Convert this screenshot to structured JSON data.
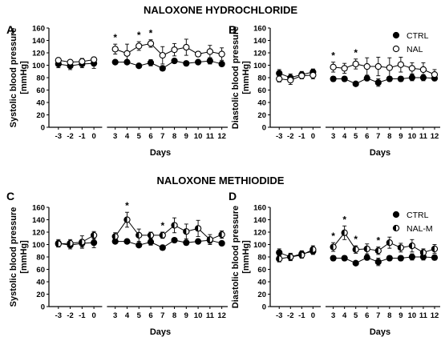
{
  "section_titles": [
    "NALOXONE HYDROCHLORIDE",
    "NALOXONE METHIODIDE"
  ],
  "chart_data": [
    {
      "type": "line",
      "panel": "A",
      "xlabel": "Days",
      "ylabel_line1": "Systolic blood pressure",
      "ylabel_line2": "[mmHg]",
      "x": [
        -3,
        -2,
        -1,
        0,
        3,
        4,
        5,
        6,
        7,
        8,
        9,
        10,
        11,
        12
      ],
      "xticks": [
        "-3",
        "-2",
        "-1",
        "0",
        "3",
        "4",
        "5",
        "6",
        "7",
        "8",
        "9",
        "10",
        "11",
        "12"
      ],
      "ylim": [
        0,
        160
      ],
      "yticks": [
        0,
        20,
        40,
        60,
        80,
        100,
        120,
        140,
        160
      ],
      "series": [
        {
          "name": "",
          "marker": "filled",
          "values": [
            102,
            99,
            102,
            103,
            105,
            105,
            99,
            104,
            95,
            107,
            103,
            105,
            107,
            102
          ],
          "errors": [
            6,
            6,
            6,
            8,
            2,
            2,
            2,
            5,
            4,
            3,
            3,
            3,
            5,
            3
          ]
        },
        {
          "name": "",
          "marker": "open",
          "values": [
            108,
            105,
            106,
            109,
            126,
            119,
            131,
            135,
            116,
            125,
            129,
            118,
            122,
            118
          ],
          "errors": [
            3,
            3,
            5,
            4,
            8,
            15,
            7,
            6,
            14,
            10,
            13,
            4,
            10,
            10
          ]
        }
      ],
      "significance": [
        3,
        5,
        6
      ],
      "legend": null
    },
    {
      "type": "line",
      "panel": "B",
      "xlabel": "Days",
      "ylabel_line1": "Diastolic blood pressure",
      "ylabel_line2": "[mmHg]",
      "x": [
        -3,
        -2,
        -1,
        0,
        3,
        4,
        5,
        6,
        7,
        8,
        9,
        10,
        11,
        12
      ],
      "xticks": [
        "-3",
        "-2",
        "-1",
        "0",
        "3",
        "4",
        "5",
        "6",
        "7",
        "8",
        "9",
        "10",
        "11",
        "12"
      ],
      "ylim": [
        0,
        160
      ],
      "yticks": [
        0,
        20,
        40,
        60,
        80,
        100,
        120,
        140,
        160
      ],
      "series": [
        {
          "name": "CTRL",
          "marker": "filled",
          "values": [
            87,
            80,
            85,
            89,
            78,
            78,
            70,
            79,
            72,
            78,
            78,
            80,
            80,
            79
          ],
          "errors": [
            6,
            6,
            5,
            5,
            4,
            4,
            2,
            4,
            6,
            4,
            4,
            5,
            5,
            4
          ]
        },
        {
          "name": "NAL",
          "marker": "open",
          "values": [
            78,
            76,
            83,
            84,
            97,
            95,
            102,
            98,
            98,
            96,
            101,
            95,
            93,
            85
          ],
          "errors": [
            5,
            7,
            5,
            6,
            8,
            8,
            8,
            14,
            15,
            16,
            12,
            9,
            11,
            8
          ]
        }
      ],
      "significance": [
        3,
        5
      ],
      "legend": "top-right"
    },
    {
      "type": "line",
      "panel": "C",
      "xlabel": "Days",
      "ylabel_line1": "Systolic blood pressure",
      "ylabel_line2": "[mmHg]",
      "x": [
        -3,
        -2,
        -1,
        0,
        3,
        4,
        5,
        6,
        7,
        8,
        9,
        10,
        11,
        12
      ],
      "xticks": [
        "-3",
        "-2",
        "-1",
        "0",
        "3",
        "4",
        "5",
        "6",
        "7",
        "8",
        "9",
        "10",
        "11",
        "12"
      ],
      "ylim": [
        0,
        160
      ],
      "yticks": [
        0,
        20,
        40,
        60,
        80,
        100,
        120,
        140,
        160
      ],
      "series": [
        {
          "name": "",
          "marker": "filled",
          "values": [
            102,
            99,
            102,
            103,
            105,
            105,
            99,
            104,
            95,
            107,
            103,
            105,
            107,
            102
          ],
          "errors": [
            6,
            6,
            6,
            8,
            2,
            2,
            2,
            5,
            4,
            3,
            3,
            3,
            5,
            3
          ]
        },
        {
          "name": "",
          "marker": "half",
          "values": [
            101,
            102,
            104,
            115,
            113,
            140,
            115,
            115,
            115,
            131,
            121,
            126,
            108,
            116
          ],
          "errors": [
            5,
            6,
            10,
            6,
            6,
            12,
            10,
            5,
            5,
            12,
            12,
            13,
            8,
            6
          ]
        }
      ],
      "significance": [
        4,
        7
      ],
      "legend": null
    },
    {
      "type": "line",
      "panel": "D",
      "xlabel": "Days",
      "ylabel_line1": "Diastolic blood pressure",
      "ylabel_line2": "[mmHg]",
      "x": [
        -3,
        -2,
        -1,
        0,
        3,
        4,
        5,
        6,
        7,
        8,
        9,
        10,
        11,
        12
      ],
      "xticks": [
        "-3",
        "-2",
        "-1",
        "0",
        "3",
        "4",
        "5",
        "6",
        "7",
        "8",
        "9",
        "10",
        "11",
        "12"
      ],
      "ylim": [
        0,
        160
      ],
      "yticks": [
        0,
        20,
        40,
        60,
        80,
        100,
        120,
        140,
        160
      ],
      "series": [
        {
          "name": "CTRL",
          "marker": "filled",
          "values": [
            87,
            80,
            85,
            89,
            78,
            78,
            70,
            79,
            72,
            78,
            78,
            80,
            80,
            79
          ],
          "errors": [
            6,
            6,
            5,
            5,
            4,
            4,
            2,
            4,
            6,
            4,
            4,
            5,
            5,
            4
          ]
        },
        {
          "name": "NAL-M",
          "marker": "half",
          "values": [
            77,
            80,
            83,
            92,
            96,
            119,
            92,
            93,
            90,
            103,
            95,
            98,
            87,
            93
          ],
          "errors": [
            5,
            5,
            5,
            6,
            7,
            11,
            6,
            8,
            6,
            9,
            7,
            10,
            6,
            7
          ]
        }
      ],
      "significance": [
        3,
        4,
        5,
        7
      ],
      "legend": "top-right"
    }
  ]
}
